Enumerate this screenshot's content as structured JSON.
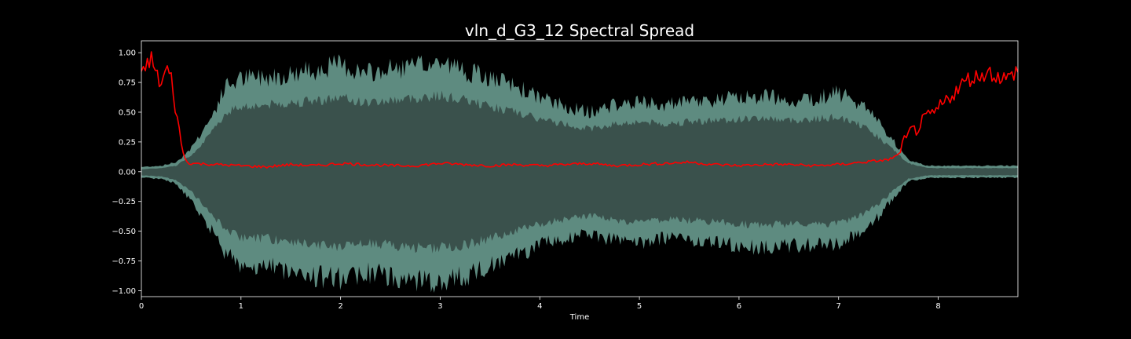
{
  "chart_data": {
    "type": "line",
    "title": "vln_d_G3_12 Spectral Spread",
    "xlabel": "Time",
    "ylabel": "",
    "xlim": [
      0,
      8.8
    ],
    "ylim": [
      -1.05,
      1.1
    ],
    "xticks": [
      0,
      1,
      2,
      3,
      4,
      5,
      6,
      7,
      8
    ],
    "xtick_labels": [
      "0",
      "1",
      "2",
      "3",
      "4",
      "5",
      "6",
      "7",
      "8"
    ],
    "yticks": [
      1.0,
      0.75,
      0.5,
      0.25,
      0.0,
      -0.25,
      -0.5,
      -0.75,
      -1.0
    ],
    "ytick_labels": [
      "1.00",
      "0.75",
      "0.50",
      "0.25",
      "0.00",
      "−0.25",
      "−0.50",
      "−0.75",
      "−1.00"
    ],
    "grid": false,
    "colors": {
      "background": "#000000",
      "axes_face": "#000000",
      "waveform_outer": "#5e8b80",
      "waveform_inner": "#3a514c",
      "spread_line": "#ff0000",
      "text": "#ffffff"
    },
    "series": [
      {
        "kind": "waveform-envelope",
        "x": [
          0,
          0.2,
          0.35,
          0.5,
          0.7,
          0.85,
          1.0,
          1.25,
          1.5,
          1.75,
          2.0,
          2.25,
          2.5,
          2.75,
          3.0,
          3.25,
          3.5,
          3.75,
          4.0,
          4.25,
          4.5,
          4.75,
          5.0,
          5.25,
          5.5,
          5.75,
          6.0,
          6.25,
          6.5,
          6.75,
          7.0,
          7.25,
          7.4,
          7.55,
          7.7,
          7.9,
          8.2,
          8.5,
          8.8
        ],
        "upper": [
          0.04,
          0.05,
          0.08,
          0.2,
          0.45,
          0.72,
          0.78,
          0.8,
          0.82,
          0.86,
          0.9,
          0.82,
          0.86,
          0.88,
          0.92,
          0.85,
          0.78,
          0.72,
          0.62,
          0.55,
          0.5,
          0.56,
          0.58,
          0.56,
          0.58,
          0.6,
          0.62,
          0.64,
          0.6,
          0.62,
          0.66,
          0.55,
          0.42,
          0.26,
          0.1,
          0.05,
          0.05,
          0.05,
          0.05
        ],
        "lower": [
          -0.05,
          -0.06,
          -0.1,
          -0.25,
          -0.48,
          -0.7,
          -0.78,
          -0.8,
          -0.84,
          -0.88,
          -0.9,
          -0.85,
          -0.88,
          -0.92,
          -0.92,
          -0.88,
          -0.8,
          -0.72,
          -0.62,
          -0.56,
          -0.52,
          -0.58,
          -0.6,
          -0.56,
          -0.58,
          -0.6,
          -0.62,
          -0.64,
          -0.62,
          -0.62,
          -0.62,
          -0.5,
          -0.38,
          -0.22,
          -0.08,
          -0.05,
          -0.05,
          -0.05,
          -0.05
        ],
        "inner_upper": [
          0.02,
          0.03,
          0.05,
          0.14,
          0.32,
          0.5,
          0.55,
          0.56,
          0.58,
          0.6,
          0.62,
          0.58,
          0.6,
          0.62,
          0.64,
          0.6,
          0.55,
          0.5,
          0.44,
          0.4,
          0.36,
          0.4,
          0.42,
          0.4,
          0.42,
          0.43,
          0.44,
          0.45,
          0.43,
          0.44,
          0.46,
          0.38,
          0.29,
          0.18,
          0.07,
          0.03,
          0.03,
          0.03,
          0.03
        ],
        "inner_lower": [
          -0.03,
          -0.04,
          -0.07,
          -0.17,
          -0.34,
          -0.5,
          -0.55,
          -0.56,
          -0.59,
          -0.62,
          -0.63,
          -0.6,
          -0.62,
          -0.64,
          -0.64,
          -0.62,
          -0.56,
          -0.5,
          -0.44,
          -0.4,
          -0.37,
          -0.41,
          -0.42,
          -0.4,
          -0.41,
          -0.42,
          -0.44,
          -0.45,
          -0.44,
          -0.44,
          -0.44,
          -0.35,
          -0.27,
          -0.16,
          -0.06,
          -0.03,
          -0.03,
          -0.03,
          -0.03
        ]
      },
      {
        "kind": "spectral-spread",
        "x": [
          0,
          0.05,
          0.1,
          0.15,
          0.2,
          0.25,
          0.3,
          0.35,
          0.4,
          0.45,
          0.5,
          0.75,
          1.0,
          1.25,
          1.5,
          1.75,
          2.0,
          2.25,
          2.5,
          2.75,
          3.0,
          3.25,
          3.5,
          3.75,
          4.0,
          4.25,
          4.5,
          4.75,
          5.0,
          5.25,
          5.5,
          5.75,
          6.0,
          6.25,
          6.5,
          6.75,
          7.0,
          7.25,
          7.5,
          7.6,
          7.7,
          7.8,
          7.9,
          8.0,
          8.1,
          8.2,
          8.3,
          8.4,
          8.5,
          8.6,
          8.7,
          8.8
        ],
        "y": [
          0.78,
          0.9,
          0.95,
          0.82,
          0.72,
          0.88,
          0.78,
          0.5,
          0.22,
          0.08,
          0.07,
          0.06,
          0.05,
          0.04,
          0.06,
          0.05,
          0.07,
          0.06,
          0.05,
          0.05,
          0.07,
          0.06,
          0.05,
          0.06,
          0.05,
          0.06,
          0.07,
          0.05,
          0.06,
          0.07,
          0.08,
          0.06,
          0.05,
          0.06,
          0.06,
          0.05,
          0.06,
          0.08,
          0.1,
          0.14,
          0.3,
          0.38,
          0.45,
          0.52,
          0.62,
          0.7,
          0.78,
          0.8,
          0.84,
          0.8,
          0.78,
          0.86
        ]
      }
    ]
  }
}
